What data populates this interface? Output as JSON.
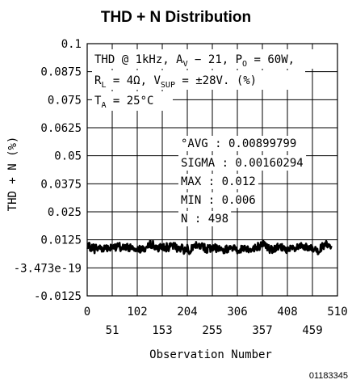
{
  "chart_data": {
    "type": "line",
    "title": "THD + N Distribution",
    "xlabel": "Observation Number",
    "ylabel": "THD + N (%)",
    "xlim": [
      0,
      510
    ],
    "ylim": [
      -0.0125,
      0.1
    ],
    "x_ticks_upper": [
      "0",
      "102",
      "204",
      "306",
      "408",
      "510"
    ],
    "x_ticks_lower": [
      "51",
      "153",
      "255",
      "357",
      "459"
    ],
    "y_ticks": [
      "0.1",
      "0.0875",
      "0.075",
      "0.0625",
      "0.05",
      "0.0375",
      "0.025",
      "0.0125",
      "-3.473e-19",
      "-0.0125"
    ],
    "grid": true,
    "conditions": {
      "line1": "THD @ 1kHz, A",
      "line1_sub": "V",
      "line1_rest": " − 21, P",
      "line1_sub2": "O",
      "line1_end": " = 60W,",
      "line2": "R",
      "line2_sub": "L",
      "line2_mid": " = 4Ω, V",
      "line2_sub2": "SUP",
      "line2_end": " = ±28V. (%)",
      "line3": "T",
      "line3_sub": "A",
      "line3_end": " = 25°C"
    },
    "annotations": [
      "°AVG : 0.00899799",
      "SIGMA : 0.00160294",
      "MAX : 0.012",
      "MIN : 0.006",
      "N : 498"
    ],
    "series": [
      {
        "n_points": 498,
        "avg": 0.00899799,
        "sigma": 0.00160294,
        "max": 0.012,
        "min": 0.006
      }
    ],
    "figure_code": "01183345"
  }
}
